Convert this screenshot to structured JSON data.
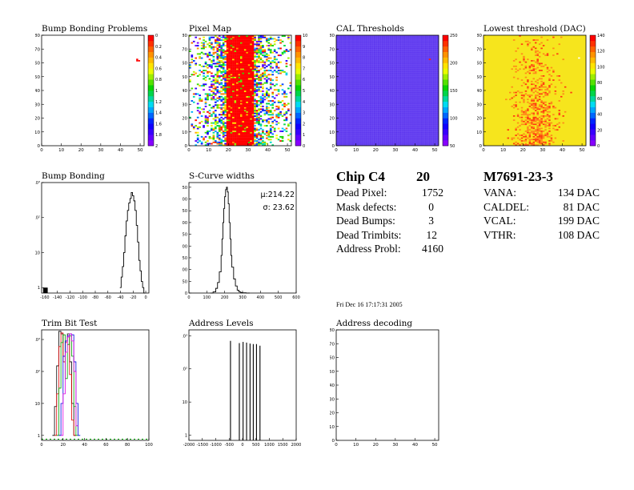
{
  "chart_data": [
    {
      "id": "bump_map",
      "type": "heatmap",
      "title": "Bump Bonding Problems",
      "xlim": [
        0,
        52
      ],
      "ylim": [
        0,
        80
      ],
      "xticks": [
        0,
        10,
        20,
        30,
        40,
        50
      ],
      "yticks": [
        0,
        10,
        20,
        30,
        40,
        50,
        60,
        70,
        80
      ],
      "zticks": [
        "0",
        "0.2",
        "0.4",
        "0.6",
        "0.8",
        "1",
        "1.2",
        "1.4",
        "1.6",
        "1.8",
        "2"
      ],
      "cells": [
        [
          48,
          61
        ],
        [
          48,
          62
        ],
        [
          49,
          61
        ]
      ]
    },
    {
      "id": "pixel_map",
      "type": "heatmap",
      "title": "Pixel Map",
      "xlim": [
        0,
        52
      ],
      "ylim": [
        0,
        80
      ],
      "xticks": [
        0,
        10,
        20,
        30,
        40,
        50
      ],
      "yticks": [
        0,
        10,
        20,
        30,
        40,
        50,
        60,
        70,
        80
      ],
      "zticks": [
        "0",
        "1",
        "2",
        "3",
        "4",
        "5",
        "6",
        "7",
        "8",
        "9",
        "10"
      ]
    },
    {
      "id": "cal_thresholds",
      "type": "heatmap",
      "title": "CAL Thresholds",
      "xlim": [
        0,
        52
      ],
      "ylim": [
        0,
        80
      ],
      "xticks": [
        0,
        10,
        20,
        30,
        40,
        50
      ],
      "yticks": [
        0,
        10,
        20,
        30,
        40,
        50,
        60,
        70,
        80
      ],
      "zticks": [
        "50",
        "100",
        "150",
        "200",
        "250"
      ]
    },
    {
      "id": "lowest_threshold",
      "type": "heatmap",
      "title": "Lowest threshold (DAC)",
      "xlim": [
        0,
        52
      ],
      "ylim": [
        0,
        80
      ],
      "xticks": [
        0,
        10,
        20,
        30,
        40,
        50
      ],
      "yticks": [
        0,
        10,
        20,
        30,
        40,
        50,
        60,
        70,
        80
      ],
      "zticks": [
        "0",
        "20",
        "40",
        "60",
        "80",
        "100",
        "120",
        "140"
      ]
    },
    {
      "id": "bump_bonding",
      "type": "line",
      "title": "Bump Bonding",
      "ylog": true,
      "xlim": [
        -165,
        5
      ],
      "ylim": [
        0.7,
        1000
      ],
      "xticks": [
        -160,
        -140,
        -120,
        -100,
        -80,
        -60,
        -40,
        -20,
        0
      ],
      "yticks": [
        {
          "v": 1,
          "label": "1"
        },
        {
          "v": 10,
          "label": "10"
        },
        {
          "v": 100,
          "label": "10²"
        },
        {
          "v": 1000,
          "label": "10³"
        }
      ],
      "series": [
        {
          "x": [
            -162,
            -161,
            -160,
            -159,
            -158,
            -157,
            -156
          ],
          "y": [
            1,
            1,
            1,
            1,
            1,
            1,
            1
          ],
          "bars": true
        },
        {
          "x": [
            -41,
            -39,
            -37,
            -35,
            -33,
            -31,
            -29,
            -27,
            -25,
            -23,
            -21,
            -19,
            -17,
            -15,
            -13,
            -11,
            -9,
            -7,
            -5,
            -3
          ],
          "y": [
            1,
            2,
            4,
            10,
            30,
            80,
            160,
            260,
            350,
            520,
            420,
            300,
            160,
            60,
            20,
            6,
            3,
            1.5,
            1,
            0.7
          ]
        }
      ]
    },
    {
      "id": "s_curve_widths",
      "type": "line",
      "title": "S-Curve widths",
      "xlim": [
        0,
        600
      ],
      "ylim": [
        0,
        470
      ],
      "xticks": [
        0,
        100,
        200,
        300,
        400,
        500,
        600
      ],
      "yticks": [
        0,
        50,
        100,
        150,
        200,
        250,
        300,
        350,
        400,
        450
      ],
      "annotations": [
        "μ:214.22",
        "σ: 23.62"
      ],
      "series": [
        {
          "x": [
            120,
            135,
            150,
            160,
            170,
            180,
            185,
            190,
            195,
            200,
            205,
            210,
            215,
            220,
            225,
            230,
            235,
            240,
            250,
            260,
            270,
            280,
            290,
            300,
            320
          ],
          "y": [
            0,
            5,
            20,
            45,
            90,
            160,
            230,
            300,
            360,
            410,
            440,
            450,
            430,
            380,
            300,
            230,
            160,
            110,
            60,
            30,
            12,
            5,
            2,
            1,
            0
          ]
        }
      ]
    },
    {
      "id": "trim_bit_test",
      "type": "line",
      "title": "Trim Bit Test",
      "ylog": true,
      "xlim": [
        0,
        100
      ],
      "ylim": [
        0.7,
        2000
      ],
      "xticks": [
        0,
        20,
        40,
        60,
        80,
        100
      ],
      "yticks": [
        {
          "v": 1,
          "label": "1"
        },
        {
          "v": 10,
          "label": "10"
        },
        {
          "v": 100,
          "label": "10²"
        },
        {
          "v": 1000,
          "label": "10³"
        }
      ],
      "series": [
        {
          "color": "#000000",
          "x": [
            10,
            12,
            14,
            16,
            18,
            20,
            22,
            24,
            26,
            28,
            30
          ],
          "y": [
            1,
            8,
            150,
            1800,
            1500,
            300,
            900,
            1500,
            200,
            10,
            1
          ]
        },
        {
          "color": "#e00000",
          "x": [
            12,
            14,
            16,
            18,
            20,
            22,
            24,
            26,
            28,
            30
          ],
          "y": [
            1,
            20,
            600,
            1600,
            200,
            800,
            1200,
            80,
            3,
            1
          ]
        },
        {
          "color": "#00a000",
          "x": [
            14,
            16,
            18,
            20,
            22,
            24,
            26,
            28,
            30,
            32
          ],
          "y": [
            1,
            30,
            800,
            1400,
            60,
            700,
            1300,
            300,
            8,
            1
          ]
        },
        {
          "color": "#0000e0",
          "x": [
            16,
            18,
            20,
            22,
            24,
            26,
            28,
            30,
            32,
            34
          ],
          "y": [
            1,
            10,
            300,
            900,
            1300,
            1500,
            1400,
            200,
            10,
            1
          ]
        },
        {
          "color": "#e000e0",
          "x": [
            18,
            20,
            22,
            24,
            26,
            28,
            30,
            32
          ],
          "y": [
            1,
            20,
            400,
            1200,
            1500,
            900,
            100,
            2
          ]
        }
      ]
    },
    {
      "id": "address_levels",
      "type": "bar",
      "title": "Address Levels",
      "ylog": true,
      "xlim": [
        -2000,
        2000
      ],
      "ylim": [
        0.7,
        1500
      ],
      "xticks": [
        -2000,
        -1500,
        -1000,
        -500,
        0,
        500,
        1000,
        1500,
        2000
      ],
      "yticks": [
        {
          "v": 1,
          "label": "1"
        },
        {
          "v": 10,
          "label": "10"
        },
        {
          "v": 100,
          "label": "10²"
        },
        {
          "v": 1000,
          "label": "10³"
        }
      ],
      "series": [
        {
          "x": [
            -450,
            -120,
            20,
            150,
            280,
            400,
            520,
            650
          ],
          "y": [
            700,
            600,
            650,
            620,
            580,
            560,
            560,
            500
          ]
        }
      ]
    },
    {
      "id": "address_decoding",
      "type": "heatmap",
      "title": "Address decoding",
      "xlim": [
        0,
        52
      ],
      "ylim": [
        0,
        80
      ],
      "xticks": [
        0,
        10,
        20,
        30,
        40,
        50
      ],
      "yticks": [
        0,
        10,
        20,
        30,
        40,
        50,
        60,
        70,
        80
      ]
    }
  ],
  "chip": {
    "title": "Chip C4",
    "number": "20",
    "rows": [
      {
        "label": "Dead Pixel:",
        "value": "1752"
      },
      {
        "label": "Mask defects:",
        "value": "0"
      },
      {
        "label": "Dead Bumps:",
        "value": "3"
      },
      {
        "label": "Dead Trimbits:",
        "value": "12"
      },
      {
        "label": "Address Probl:",
        "value": "4160"
      }
    ]
  },
  "module": {
    "title": "M7691-23-3",
    "rows": [
      {
        "label": "VANA:",
        "value": "134 DAC"
      },
      {
        "label": "CALDEL:",
        "value": "81 DAC"
      },
      {
        "label": "VCAL:",
        "value": "199 DAC"
      },
      {
        "label": "VTHR:",
        "value": "108 DAC"
      }
    ]
  },
  "date": "Fri Dec 16 17:17:31 2005",
  "colors": {
    "frame": "#000000",
    "palette_top": "#ff0000",
    "palette_bottom": "#8800ff",
    "cal_bg": "#5c35ee",
    "lowest_bg": "#f6e51d"
  }
}
